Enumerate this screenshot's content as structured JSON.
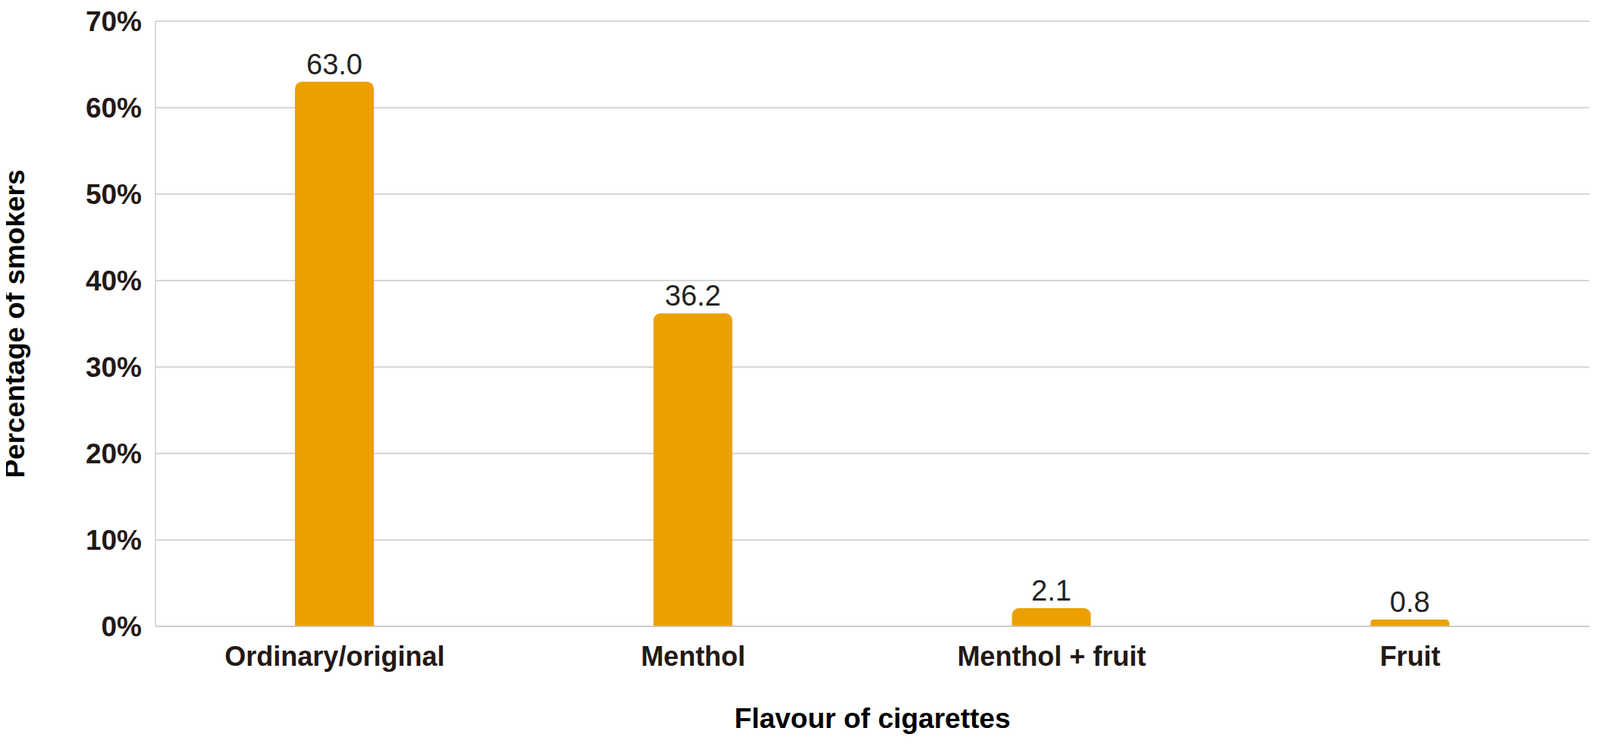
{
  "chart_data": {
    "type": "bar",
    "categories": [
      "Ordinary/original",
      "Menthol",
      "Menthol + fruit",
      "Fruit"
    ],
    "values": [
      63.0,
      36.2,
      2.1,
      0.8
    ],
    "value_labels": [
      "63.0",
      "36.2",
      "2.1",
      "0.8"
    ],
    "data_labels": true,
    "color": "#EBA000",
    "x_label": "Flavour of cigarettes",
    "y_label": "Percentage of smokers",
    "ylim": [
      0,
      70
    ],
    "yticks": [
      {
        "value": 0,
        "label": "0%"
      },
      {
        "value": 10,
        "label": "10%"
      },
      {
        "value": 20,
        "label": "20%"
      },
      {
        "value": 30,
        "label": "30%"
      },
      {
        "value": 40,
        "label": "40%"
      },
      {
        "value": 50,
        "label": "50%"
      },
      {
        "value": 60,
        "label": "60%"
      },
      {
        "value": 70,
        "label": "70%"
      }
    ],
    "grid": true
  }
}
